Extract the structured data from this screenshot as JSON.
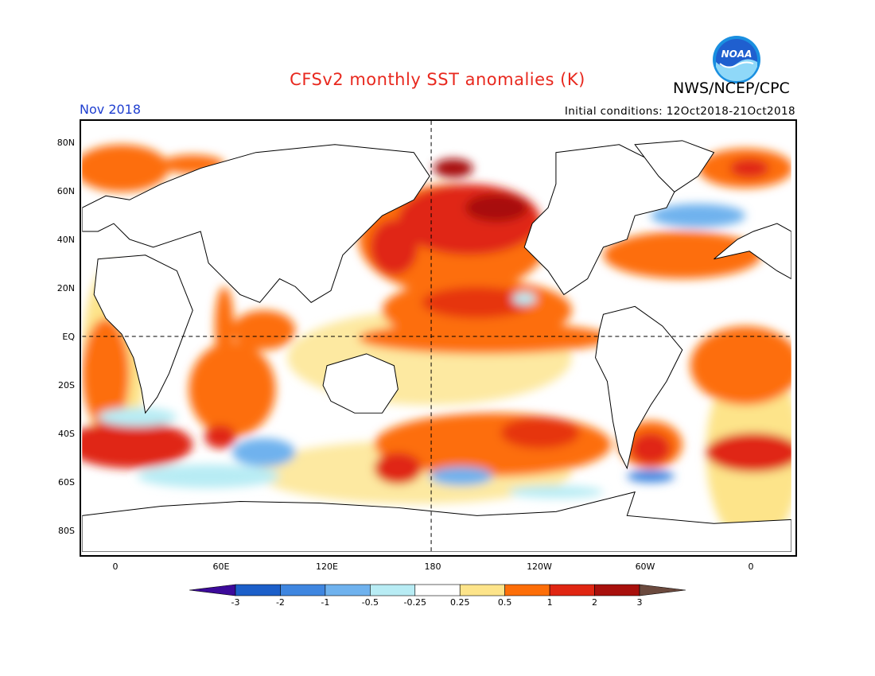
{
  "title": "CFSv2 monthly SST anomalies (K)",
  "agency": "NWS/NCEP/CPC",
  "logo_text": "NOAA",
  "valid_month": "Nov 2018",
  "initial_conditions": "Initial conditions: 12Oct2018-21Oct2018",
  "lat_labels": [
    "80N",
    "60N",
    "40N",
    "20N",
    "EQ",
    "20S",
    "40S",
    "60S",
    "80S"
  ],
  "lon_labels": [
    "0",
    "60E",
    "120E",
    "180",
    "120W",
    "60W",
    "0"
  ],
  "colorbar": {
    "labels": [
      "-3",
      "-2",
      "-1",
      "-0.5",
      "-0.25",
      "0.25",
      "0.5",
      "1",
      "2",
      "3"
    ],
    "colors": [
      "#3c0a9a",
      "#1c5fc9",
      "#3f86e0",
      "#6fb2ee",
      "#b8ecf4",
      "#ffffff",
      "#fde48a",
      "#fd6e08",
      "#e02612",
      "#a8100c",
      "#6b4a3e"
    ]
  }
}
